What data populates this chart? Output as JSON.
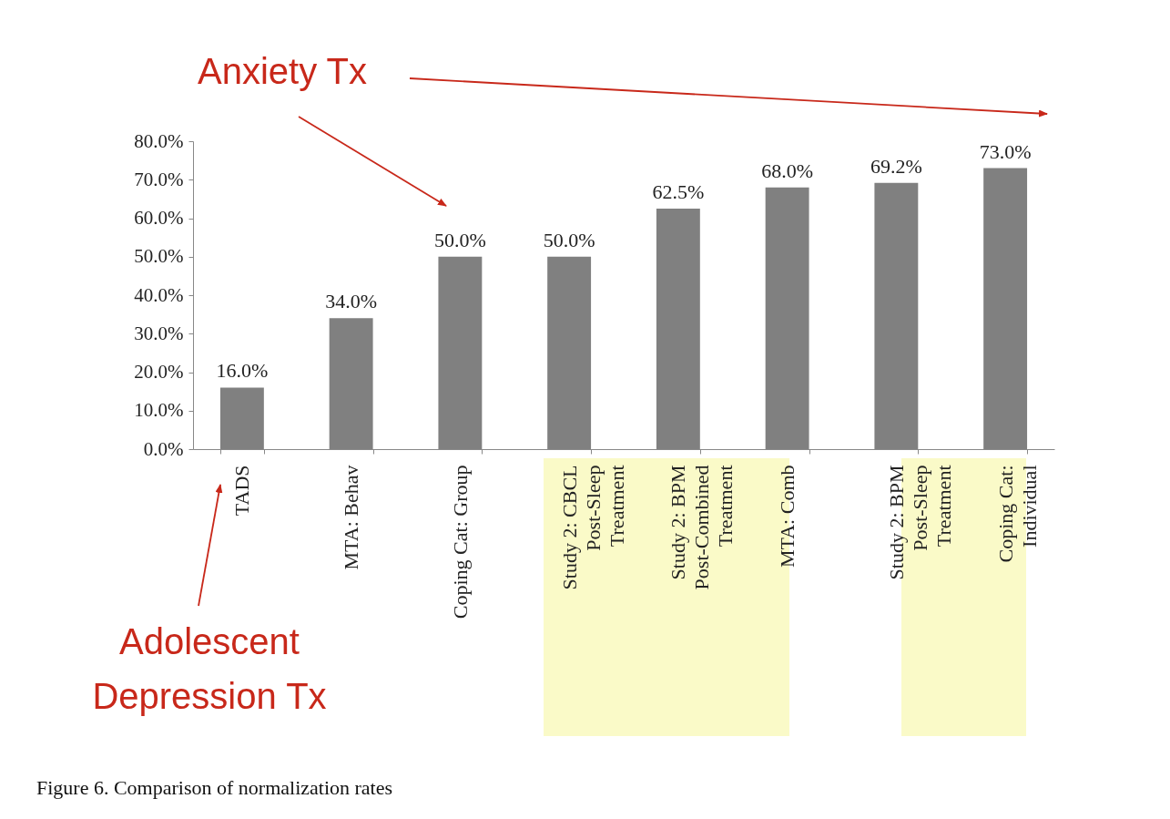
{
  "chart_data": {
    "type": "bar",
    "categories": [
      "TADS",
      "MTA: Behav",
      "Coping Cat: Group",
      "Study 2: CBCL Post-Sleep Treatment",
      "Study 2: BPM Post-Combined Treatment",
      "MTA: Comb",
      "Study 2: BPM Post-Sleep Treatment",
      "Coping Cat: Individual"
    ],
    "values": [
      16.0,
      34.0,
      50.0,
      50.0,
      62.5,
      68.0,
      69.2,
      73.0
    ],
    "value_labels": [
      "16.0%",
      "34.0%",
      "50.0%",
      "50.0%",
      "62.5%",
      "68.0%",
      "69.2%",
      "73.0%"
    ],
    "color": "#808080",
    "ylim": [
      0,
      80
    ],
    "yticks": [
      {
        "value": 0,
        "label": "0.0%"
      },
      {
        "value": 10,
        "label": "10.0%"
      },
      {
        "value": 20,
        "label": "20.0%"
      },
      {
        "value": 30,
        "label": "30.0%"
      },
      {
        "value": 40,
        "label": "40.0%"
      },
      {
        "value": 50,
        "label": "50.0%"
      },
      {
        "value": 60,
        "label": "60.0%"
      },
      {
        "value": 70,
        "label": "70.0%"
      },
      {
        "value": 80,
        "label": "80.0%"
      }
    ],
    "grid": false,
    "annotations": [
      "Anxiety Tx",
      "Adolescent Depression Tx",
      "Figure 6. Comparison of normalization rates"
    ]
  }
}
